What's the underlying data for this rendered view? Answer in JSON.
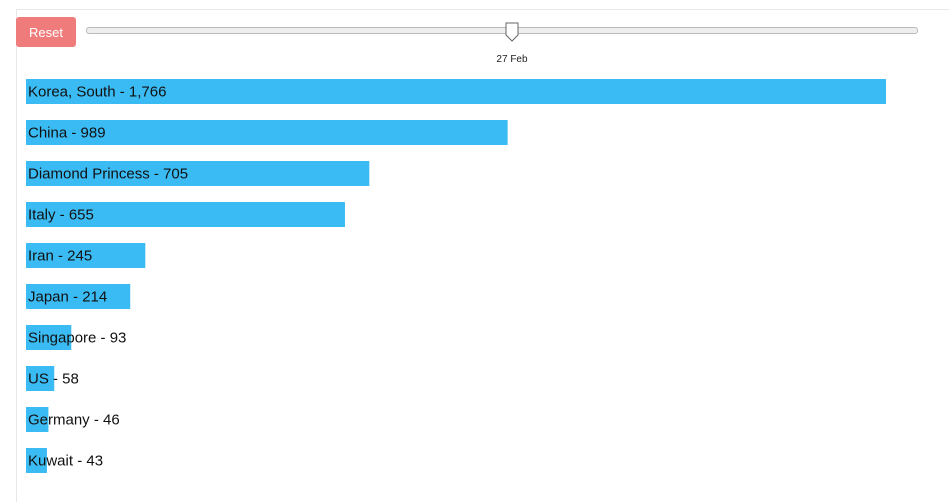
{
  "reset_button": "Reset",
  "slider": {
    "label": "27 Feb"
  },
  "chart_data": {
    "type": "bar",
    "color": "#3bbbf3",
    "values": [
      1766,
      989,
      705,
      655,
      245,
      214,
      93,
      58,
      46,
      43
    ],
    "value_labels": [
      "Korea, South - 1,766",
      "China - 989",
      "Diamond Princess - 705",
      "Italy - 655",
      "Iran - 245",
      "Japan - 214",
      "Singapore - 93",
      "US - 58",
      "Germany - 46",
      "Kuwait - 43"
    ]
  }
}
